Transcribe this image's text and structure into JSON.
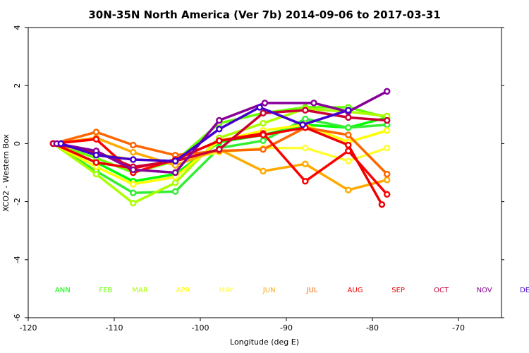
{
  "chart_data": {
    "type": "line",
    "title": "30N-35N North America (Ver 7b)   2014-09-06 to 2017-03-31",
    "xlabel": "Longitude (deg E)",
    "ylabel": "XCO2 - Western Box",
    "xlim": [
      -120,
      -65
    ],
    "ylim": [
      -6,
      4
    ],
    "xticks": [
      -120,
      -110,
      -100,
      -90,
      -80,
      -70
    ],
    "yticks": [
      -6,
      -4,
      -2,
      0,
      2,
      4
    ],
    "legend_placement": "inside-bottom",
    "grid": false,
    "series": [
      {
        "name": "ANN",
        "color": "#00ff00",
        "x": [
          -117.1,
          -112.1,
          -107.8,
          -102.9,
          -97.8,
          -92.7,
          -87.8,
          -82.8,
          -78.3
        ],
        "y": [
          0.0,
          -0.65,
          -1.3,
          -1.05,
          0.05,
          0.3,
          0.65,
          0.55,
          0.9
        ]
      },
      {
        "name": "ANN",
        "color": "#33ee33",
        "x": [
          -117.1,
          -112.1,
          -107.8,
          -102.9,
          -97.8,
          -92.7,
          -87.8,
          -82.8,
          -78.3
        ],
        "y": [
          0.0,
          -0.95,
          -1.7,
          -1.65,
          -0.15,
          0.1,
          0.85,
          0.55,
          0.65
        ]
      },
      {
        "name": "FEB",
        "color": "#66ff00",
        "x": [
          -117.1,
          -112.1,
          -107.8,
          -102.9,
          -97.8,
          -92.7,
          -87.8,
          -82.8,
          -78.3
        ],
        "y": [
          0.0,
          -0.5,
          -1.0,
          -0.6,
          0.7,
          1.05,
          1.25,
          1.25,
          0.9
        ]
      },
      {
        "name": "MAR",
        "color": "#aaff00",
        "x": [
          -117.1,
          -112.1,
          -107.8,
          -102.9,
          -97.8,
          -92.7,
          -87.8,
          -82.8,
          -78.3
        ],
        "y": [
          0.0,
          -1.05,
          -2.05,
          -1.35,
          0.2,
          0.7,
          1.2,
          1.1,
          0.95
        ]
      },
      {
        "name": "APR",
        "color": "#ffff00",
        "x": [
          -117.1,
          -112.1,
          -107.8,
          -102.9,
          -97.8,
          -92.7,
          -87.8,
          -82.8,
          -78.3
        ],
        "y": [
          0.0,
          -0.8,
          -1.4,
          -1.15,
          0.1,
          0.45,
          0.65,
          0.05,
          0.45
        ]
      },
      {
        "name": "MAY",
        "color": "#ffff33",
        "x": [
          -117.1,
          -112.1,
          -107.8,
          -102.9,
          -97.8,
          -92.7,
          -87.8,
          -82.8,
          -78.3
        ],
        "y": [
          0.0,
          -0.35,
          -0.55,
          -0.6,
          -0.3,
          -0.15,
          -0.15,
          -0.6,
          -0.15
        ]
      },
      {
        "name": "JUN",
        "color": "#ffaa00",
        "x": [
          -117.1,
          -112.1,
          -107.8,
          -102.9,
          -97.8,
          -92.7,
          -87.8,
          -82.8,
          -78.3
        ],
        "y": [
          0.0,
          0.2,
          -0.3,
          -0.75,
          -0.2,
          -0.95,
          -0.7,
          -1.6,
          -1.25
        ]
      },
      {
        "name": "JUL",
        "color": "#ff6600",
        "x": [
          -117.1,
          -112.1,
          -107.8,
          -102.9,
          -97.8,
          -92.7,
          -87.8,
          -82.8,
          -78.3
        ],
        "y": [
          0.0,
          0.4,
          -0.05,
          -0.4,
          -0.25,
          -0.2,
          0.55,
          0.3,
          -1.05
        ]
      },
      {
        "name": "AUG",
        "color": "#ff0000",
        "x": [
          -117.1,
          -112.1,
          -107.8,
          -102.9,
          -97.8,
          -92.7,
          -87.8,
          -82.8,
          -78.3
        ],
        "y": [
          0.0,
          0.15,
          -1.0,
          -0.55,
          0.1,
          0.35,
          -1.3,
          -0.25,
          -1.75
        ]
      },
      {
        "name": "SEP",
        "color": "#ee0000",
        "x": [
          -117.1,
          -112.1,
          -107.8,
          -102.9,
          -97.8,
          -92.7,
          -87.8,
          -82.8,
          -78.9
        ],
        "y": [
          0.0,
          -0.65,
          -0.85,
          -0.55,
          0.1,
          0.3,
          0.55,
          -0.05,
          -2.1
        ]
      },
      {
        "name": "OCT",
        "color": "#cc0033",
        "x": [
          -117.1,
          -112.1,
          -107.8,
          -102.9,
          -97.8,
          -92.7,
          -87.8,
          -82.8,
          -78.3
        ],
        "y": [
          0.0,
          -0.3,
          -0.8,
          -0.6,
          -0.2,
          1.05,
          1.15,
          0.9,
          0.8
        ]
      },
      {
        "name": "NOV",
        "color": "#880099",
        "x": [
          -116.7,
          -112.1,
          -107.8,
          -102.9,
          -97.8,
          -92.5,
          -86.8,
          -82.8,
          -78.3
        ],
        "y": [
          0.0,
          -0.25,
          -0.9,
          -1.0,
          0.8,
          1.4,
          1.4,
          1.1,
          1.8
        ]
      },
      {
        "name": "DEC",
        "color": "#4400cc",
        "x": [
          -116.2,
          -112.1,
          -107.8,
          -102.9,
          -97.8,
          -93.1,
          -88.1,
          -82.8
        ],
        "y": [
          0.0,
          -0.4,
          -0.55,
          -0.6,
          0.5,
          1.25,
          0.65,
          1.15
        ]
      }
    ],
    "legend": [
      {
        "label": "ANN",
        "color": "#00ff00"
      },
      {
        "label": "FEB",
        "color": "#66ff00"
      },
      {
        "label": "MAR",
        "color": "#aaff00"
      },
      {
        "label": "APR",
        "color": "#ffff00"
      },
      {
        "label": "MAY",
        "color": "#ffff33"
      },
      {
        "label": "JUN",
        "color": "#ffaa00"
      },
      {
        "label": "JUL",
        "color": "#ff6600"
      },
      {
        "label": "AUG",
        "color": "#ff0000"
      },
      {
        "label": "SEP",
        "color": "#ee0000"
      },
      {
        "label": "OCT",
        "color": "#cc0033"
      },
      {
        "label": "NOV",
        "color": "#880099"
      },
      {
        "label": "DEC",
        "color": "#4400cc"
      }
    ]
  }
}
